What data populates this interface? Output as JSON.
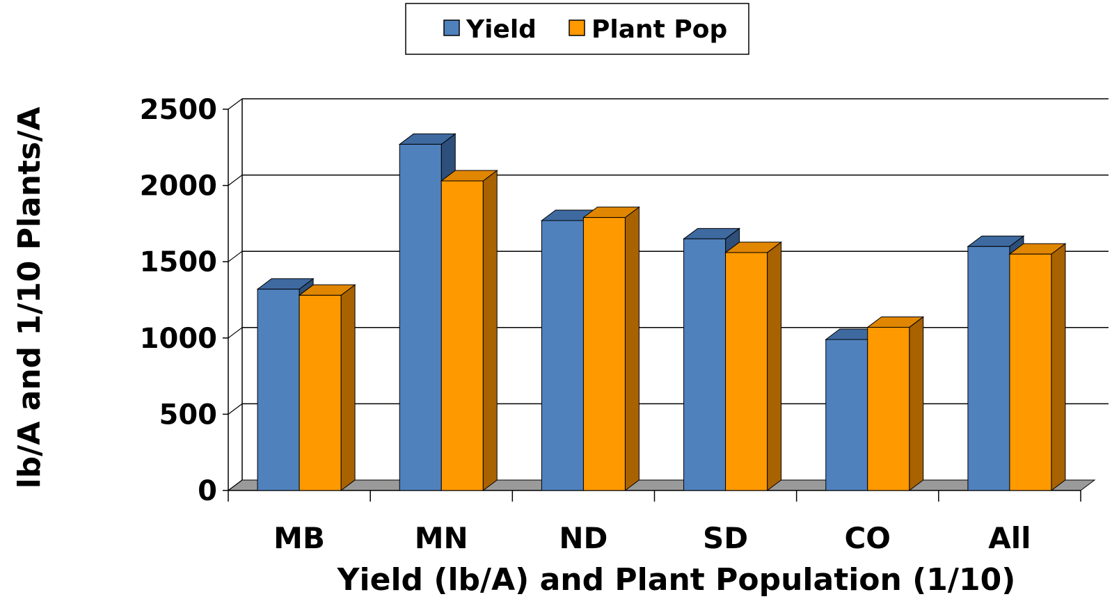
{
  "chart_data": {
    "type": "bar",
    "categories": [
      "MB",
      "MN",
      "ND",
      "SD",
      "CO",
      "All"
    ],
    "series": [
      {
        "name": "Yield",
        "values": [
          1320,
          2270,
          1770,
          1650,
          990,
          1600
        ]
      },
      {
        "name": "Plant Pop",
        "values": [
          1280,
          2030,
          1790,
          1560,
          1070,
          1550
        ]
      }
    ],
    "xlabel": "Yield (lb/A) and Plant Population (1/10)",
    "ylabel": "lb/A and 1/10 Plants/A",
    "ylim": [
      0,
      2500
    ],
    "yticks": [
      "0",
      "500",
      "1000",
      "1500",
      "2000",
      "2500"
    ],
    "grid": true,
    "legend_position": "top-center",
    "colors": {
      "Yield": {
        "front": "#4f81bd",
        "top": "#3e6aa0",
        "side": "#2e4f7a"
      },
      "Plant Pop": {
        "front": "#ff9900",
        "top": "#e08600",
        "side": "#a86200"
      },
      "floor": "#9a9a9a",
      "grid": "#000000"
    }
  }
}
